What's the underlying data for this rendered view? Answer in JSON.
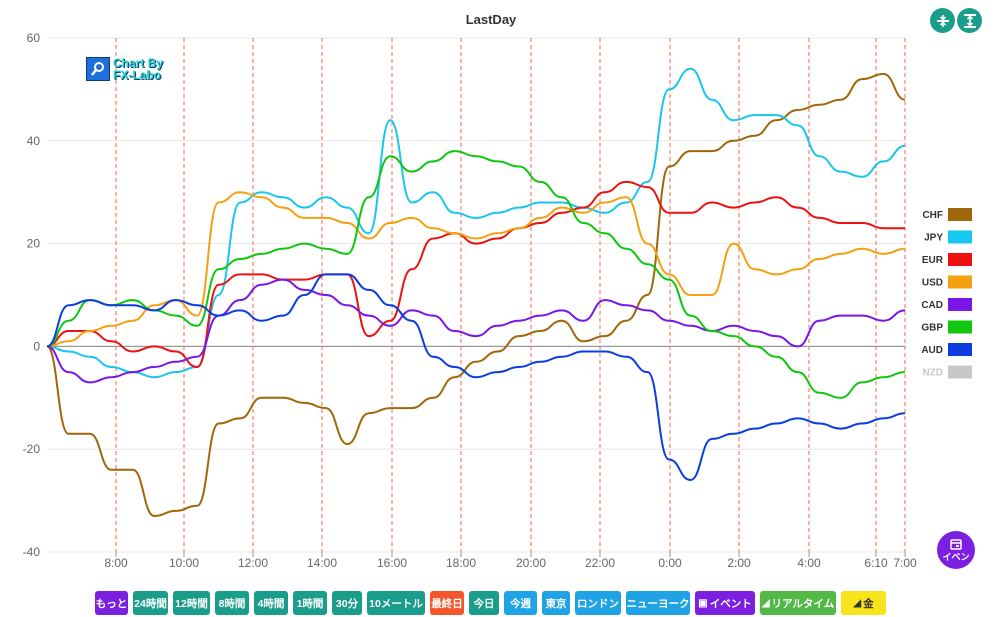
{
  "chart_data": {
    "type": "line",
    "title": "LastDay",
    "ylim": [
      -40,
      60
    ],
    "yticks": [
      60,
      40,
      20,
      0,
      -20,
      -40
    ],
    "xticks": [
      "8:00",
      "10:00",
      "12:00",
      "14:00",
      "16:00",
      "18:00",
      "20:00",
      "22:00",
      "0:00",
      "2:00",
      "4:00",
      "6:10",
      "7:00"
    ],
    "grid": true,
    "legend_position": "right",
    "colors": {
      "CHF": "#a0660a",
      "JPY": "#18c6ee",
      "EUR": "#ee1111",
      "USD": "#f5a011",
      "CAD": "#7a17e6",
      "GBP": "#11c611",
      "AUD": "#0c3de0",
      "NZD": "#c8c8c8"
    },
    "series": [
      {
        "name": "CHF",
        "values": [
          0,
          -17,
          -17,
          -24,
          -24,
          -33,
          -32,
          -31,
          -15,
          -14,
          -10,
          -10,
          -11,
          -12,
          -19,
          -13,
          -12,
          -12,
          -10,
          -6,
          -3,
          -1,
          2,
          3,
          5,
          1,
          2,
          5,
          10,
          35,
          38,
          38,
          40,
          41,
          44,
          46,
          47,
          48,
          52,
          53,
          48
        ]
      },
      {
        "name": "JPY",
        "values": [
          0,
          -1,
          -2,
          -4,
          -5,
          -6,
          -5,
          -4,
          10,
          28,
          30,
          29,
          27,
          29,
          27,
          22,
          44,
          28,
          30,
          26,
          25,
          26,
          27,
          28,
          28,
          27,
          26,
          28,
          32,
          50,
          54,
          48,
          44,
          45,
          45,
          43,
          37,
          34,
          33,
          36,
          39
        ]
      },
      {
        "name": "EUR",
        "values": [
          0,
          3,
          3,
          1,
          -1,
          0,
          -1,
          -4,
          12,
          14,
          14,
          13,
          13,
          14,
          14,
          2,
          5,
          15,
          21,
          22,
          20,
          21,
          23,
          24,
          26,
          27,
          30,
          32,
          31,
          26,
          26,
          28,
          27,
          28,
          29,
          27,
          25,
          24,
          24,
          23,
          23
        ]
      },
      {
        "name": "USD",
        "values": [
          0,
          1,
          3,
          4,
          5,
          8,
          9,
          6,
          28,
          30,
          29,
          27,
          25,
          25,
          24,
          21,
          24,
          25,
          23,
          22,
          21,
          22,
          23,
          25,
          27,
          26,
          28,
          29,
          20,
          14,
          10,
          10,
          20,
          15,
          14,
          15,
          17,
          18,
          19,
          18,
          19
        ]
      },
      {
        "name": "CAD",
        "values": [
          0,
          -5,
          -7,
          -6,
          -5,
          -4,
          -3,
          -2,
          6,
          9,
          12,
          13,
          11,
          10,
          8,
          6,
          4,
          7,
          6,
          3,
          2,
          4,
          5,
          6,
          7,
          5,
          9,
          8,
          7,
          5,
          4,
          3,
          4,
          3,
          2,
          0,
          5,
          6,
          6,
          5,
          7
        ]
      },
      {
        "name": "GBP",
        "values": [
          0,
          5,
          9,
          8,
          9,
          7,
          6,
          4,
          15,
          17,
          18,
          19,
          20,
          19,
          18,
          29,
          37,
          34,
          36,
          38,
          37,
          36,
          35,
          32,
          29,
          24,
          22,
          19,
          16,
          13,
          6,
          3,
          2,
          0,
          -2,
          -5,
          -9,
          -10,
          -7,
          -6,
          -5
        ]
      },
      {
        "name": "AUD",
        "values": [
          0,
          8,
          9,
          8,
          8,
          7,
          9,
          8,
          6,
          7,
          5,
          6,
          10,
          14,
          14,
          11,
          8,
          5,
          -2,
          -4,
          -6,
          -5,
          -4,
          -3,
          -2,
          -1,
          -1,
          -2,
          -5,
          -22,
          -26,
          -18,
          -17,
          -16,
          -15,
          -14,
          -15,
          -16,
          -15,
          -14,
          -13
        ]
      }
    ],
    "legend_disabled": [
      "NZD"
    ]
  },
  "logo": {
    "line1": "Chart By",
    "line2": "FX-Labo"
  },
  "toolbar": [
    {
      "label": "もっと",
      "color": "#7b1fe0"
    },
    {
      "label": "24時間",
      "color": "#1a9d8a"
    },
    {
      "label": "12時間",
      "color": "#1a9d8a"
    },
    {
      "label": "8時間",
      "color": "#1a9d8a"
    },
    {
      "label": "4時間",
      "color": "#1a9d8a"
    },
    {
      "label": "1時間",
      "color": "#1a9d8a"
    },
    {
      "label": "30分",
      "color": "#1a9d8a"
    },
    {
      "label": "10メートル",
      "color": "#1a9d8a"
    },
    {
      "label": "最終日",
      "color": "#f2572b"
    },
    {
      "label": "今日",
      "color": "#1a9d8a"
    },
    {
      "label": "今週",
      "color": "#1fa3e4"
    },
    {
      "label": "東京",
      "color": "#1fa3e4"
    },
    {
      "label": "ロンドン",
      "color": "#1fa3e4"
    },
    {
      "label": "ニューヨーク",
      "color": "#1fa3e4"
    },
    {
      "label": "イベント",
      "color": "#7b1fe0",
      "icon": "calendar-icon"
    },
    {
      "label": "リアルタイム",
      "color": "#52b946",
      "icon": "chart-icon"
    },
    {
      "label": "金",
      "color": "#f7e41b",
      "text_color": "#333",
      "icon": "chart-icon"
    }
  ],
  "event_fab": {
    "label": "イベン",
    "icon": "calendar-icon"
  },
  "corner_buttons": [
    {
      "icon": "compress-icon"
    },
    {
      "icon": "expand-icon"
    }
  ]
}
